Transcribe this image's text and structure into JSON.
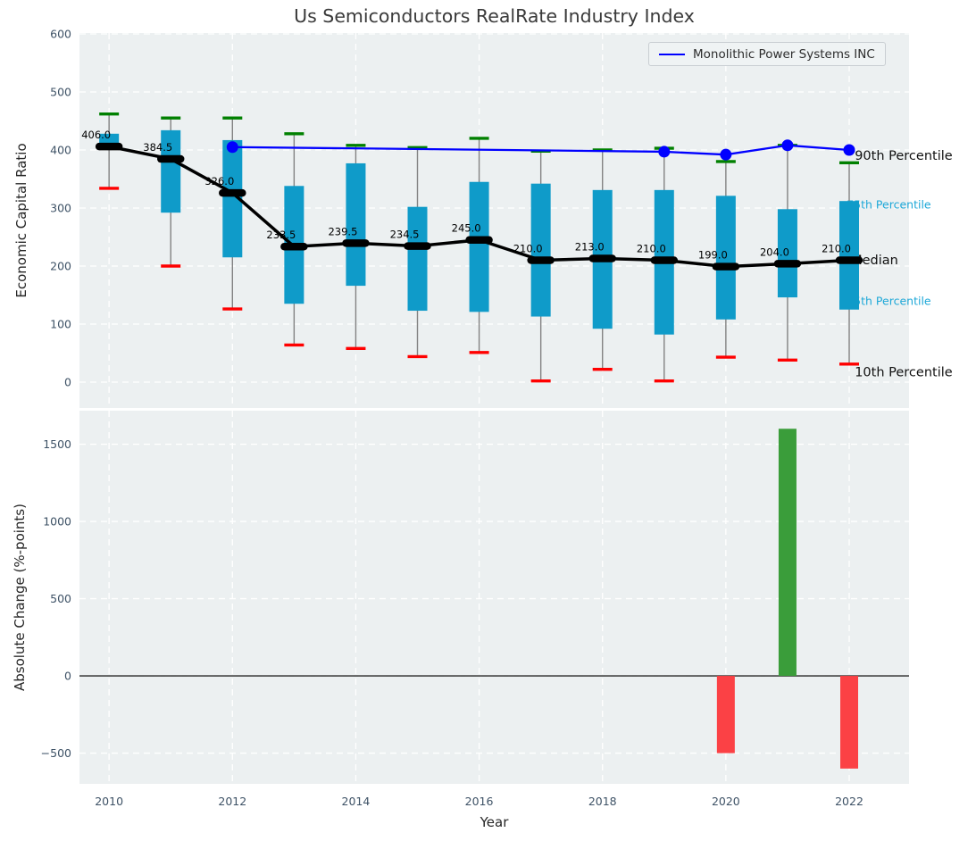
{
  "figure": {
    "title": "Us Semiconductors RealRate Industry Index",
    "legend_label": "Monolithic Power Systems INC",
    "top_ylabel": "Economic Capital Ratio",
    "bottom_ylabel": "Absolute Change (%-points)",
    "xlabel": "Year"
  },
  "colors": {
    "box": "#0f9bc9",
    "whisker": "#828282",
    "cap_high": "#008000",
    "cap_low": "#ff0000",
    "median": "#000000",
    "company_line": "#0000ff",
    "bar_up": "#3a9d3a",
    "bar_down": "#fb4145",
    "axes_bg": "#ecf0f1",
    "grid": "#ffffff",
    "tick": "#3e5266",
    "zero_line": "#222222",
    "median_label": "#000000",
    "pct_label_black": "#111111",
    "pct_label_teal": "#1ea8d8"
  },
  "chart_data": [
    {
      "type": "box-whisker-with-median-line",
      "title": "Us Semiconductors RealRate Industry Index",
      "ylabel": "Economic Capital Ratio",
      "xlim": [
        2009.52,
        2022.97
      ],
      "ylim": [
        -44.6,
        601.5
      ],
      "yticks": [
        0,
        100,
        200,
        300,
        400,
        500,
        600
      ],
      "xticks": [
        2010,
        2012,
        2014,
        2016,
        2018,
        2020,
        2022
      ],
      "grid": true,
      "years": [
        2010,
        2011,
        2012,
        2013,
        2014,
        2015,
        2016,
        2017,
        2018,
        2019,
        2020,
        2021,
        2022
      ],
      "p10": [
        334,
        200,
        126,
        64,
        58,
        44,
        51,
        2,
        22,
        2,
        43,
        38,
        31
      ],
      "p25": [
        400,
        292,
        215,
        135,
        166,
        123,
        121,
        113,
        92,
        82,
        108,
        146,
        125
      ],
      "median": [
        406.0,
        384.5,
        326.0,
        233.5,
        239.5,
        234.5,
        245.0,
        210.0,
        213.0,
        210.0,
        199.0,
        204.0,
        210.0
      ],
      "p75": [
        428,
        434,
        417,
        338,
        377,
        302,
        345,
        342,
        331,
        331,
        321,
        298,
        312
      ],
      "p90": [
        462,
        455,
        455,
        428,
        408,
        404,
        420,
        398,
        400,
        403,
        380,
        408,
        378
      ],
      "median_labels": [
        "406.0",
        "384.5",
        "326.0",
        "233.5",
        "239.5",
        "234.5",
        "245.0",
        "210.0",
        "213.0",
        "210.0",
        "199.0",
        "204.0",
        "210.0"
      ],
      "series": [
        {
          "name": "Monolithic Power Systems INC",
          "x": [
            2012,
            2019,
            2020,
            2021,
            2022
          ],
          "y": [
            405,
            397,
            392,
            408,
            400
          ]
        }
      ],
      "annotations": [
        {
          "text": "90th Percentile",
          "year": 2022.09,
          "value": 391,
          "color": "black",
          "size": 14.5
        },
        {
          "text": "75th Percentile",
          "year": 2021.96,
          "value": 306,
          "color": "teal",
          "size": 12.5
        },
        {
          "text": "Median",
          "year": 2022.03,
          "value": 211,
          "color": "black",
          "size": 14.5
        },
        {
          "text": "25th Percentile",
          "year": 2021.96,
          "value": 140,
          "color": "teal",
          "size": 12.5
        },
        {
          "text": "10th Percentile",
          "year": 2022.09,
          "value": 18,
          "color": "black",
          "size": 14.5
        }
      ]
    },
    {
      "type": "bar",
      "ylabel": "Absolute Change (%-points)",
      "xlabel": "Year",
      "xlim": [
        2009.52,
        2022.97
      ],
      "ylim": [
        -699,
        1717
      ],
      "yticks": [
        -500,
        0,
        500,
        1000,
        1500
      ],
      "xticks": [
        2010,
        2012,
        2014,
        2016,
        2018,
        2020,
        2022
      ],
      "grid": true,
      "zero_line": true,
      "bars": [
        {
          "year": 2020,
          "value": -500
        },
        {
          "year": 2021,
          "value": 1600
        },
        {
          "year": 2022,
          "value": -600
        }
      ]
    }
  ]
}
